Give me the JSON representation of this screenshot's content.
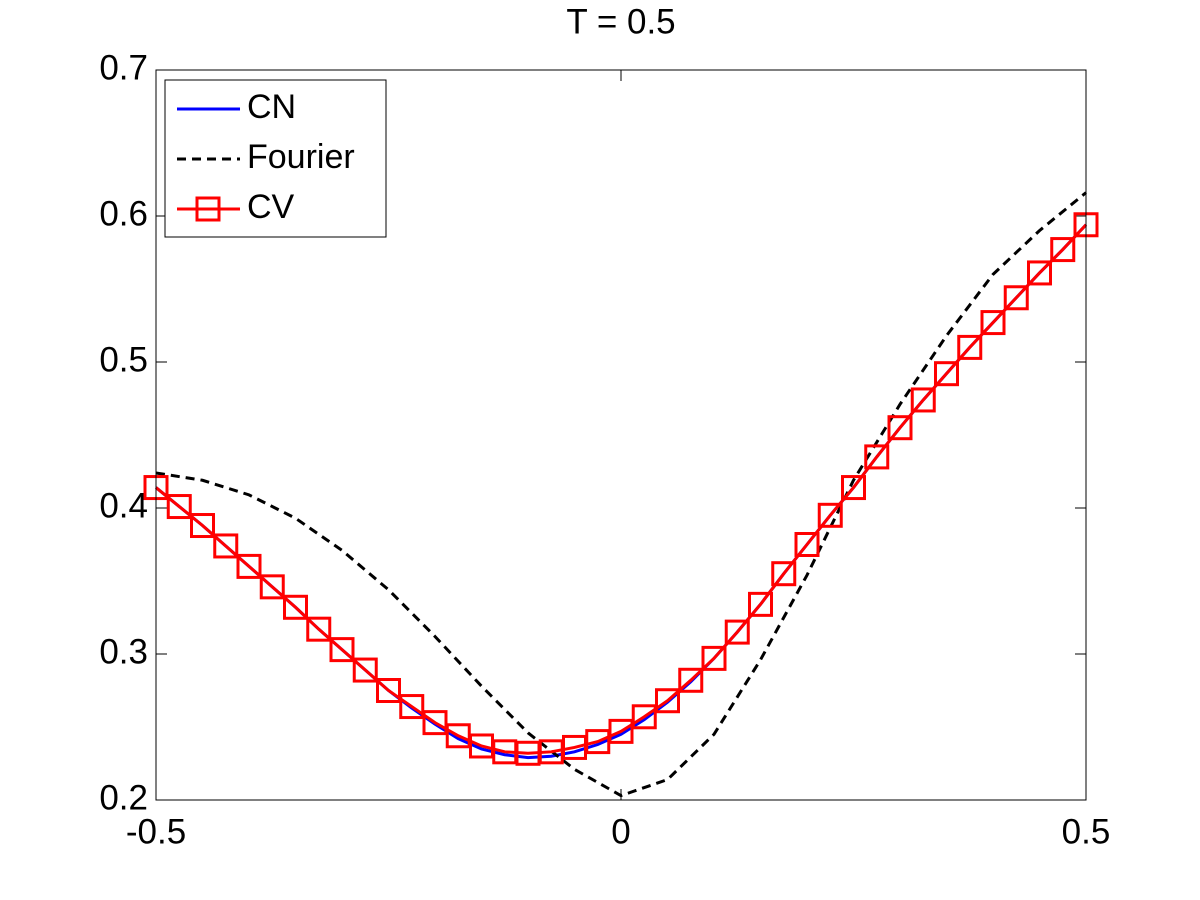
{
  "chart_data": {
    "type": "line",
    "title": "T = 0.5",
    "xlim": [
      -0.5,
      0.5
    ],
    "ylim": [
      0.2,
      0.7
    ],
    "xticks": [
      -0.5,
      0,
      0.5
    ],
    "yticks": [
      0.2,
      0.3,
      0.4,
      0.5,
      0.6,
      0.7
    ],
    "legend": "upper-left",
    "series": [
      {
        "name": "CN",
        "color": "#0000ff",
        "style": "solid",
        "marker": "none",
        "x": [
          -0.5,
          -0.475,
          -0.45,
          -0.425,
          -0.4,
          -0.375,
          -0.35,
          -0.325,
          -0.3,
          -0.275,
          -0.25,
          -0.225,
          -0.2,
          -0.175,
          -0.15,
          -0.125,
          -0.1,
          -0.075,
          -0.05,
          -0.025,
          0,
          0.025,
          0.05,
          0.075,
          0.1,
          0.125,
          0.15,
          0.175,
          0.2,
          0.225,
          0.25,
          0.275,
          0.3,
          0.325,
          0.35,
          0.375,
          0.4,
          0.425,
          0.45,
          0.475,
          0.5
        ],
        "values": [
          0.414,
          0.401,
          0.388,
          0.374,
          0.36,
          0.346,
          0.332,
          0.317,
          0.303,
          0.289,
          0.275,
          0.263,
          0.252,
          0.242,
          0.235,
          0.231,
          0.229,
          0.23,
          0.233,
          0.238,
          0.245,
          0.255,
          0.267,
          0.281,
          0.297,
          0.315,
          0.334,
          0.355,
          0.375,
          0.395,
          0.414,
          0.435,
          0.455,
          0.474,
          0.492,
          0.51,
          0.527,
          0.544,
          0.561,
          0.577,
          0.594
        ]
      },
      {
        "name": "Fourier",
        "color": "#000000",
        "style": "dashed",
        "marker": "none",
        "x": [
          -0.5,
          -0.45,
          -0.4,
          -0.35,
          -0.3,
          -0.25,
          -0.2,
          -0.15,
          -0.1,
          -0.05,
          0,
          0.05,
          0.1,
          0.15,
          0.2,
          0.25,
          0.3,
          0.35,
          0.4,
          0.45,
          0.5
        ],
        "values": [
          0.424,
          0.419,
          0.409,
          0.393,
          0.371,
          0.344,
          0.312,
          0.278,
          0.246,
          0.221,
          0.203,
          0.214,
          0.245,
          0.296,
          0.354,
          0.419,
          0.471,
          0.518,
          0.56,
          0.59,
          0.616
        ]
      },
      {
        "name": "CV",
        "color": "#ff0000",
        "style": "solid",
        "marker": "square",
        "x": [
          -0.5,
          -0.475,
          -0.45,
          -0.425,
          -0.4,
          -0.375,
          -0.35,
          -0.325,
          -0.3,
          -0.275,
          -0.25,
          -0.225,
          -0.2,
          -0.175,
          -0.15,
          -0.125,
          -0.1,
          -0.075,
          -0.05,
          -0.025,
          0,
          0.025,
          0.05,
          0.075,
          0.1,
          0.125,
          0.15,
          0.175,
          0.2,
          0.225,
          0.25,
          0.275,
          0.3,
          0.325,
          0.35,
          0.375,
          0.4,
          0.425,
          0.45,
          0.475,
          0.5
        ],
        "values": [
          0.414,
          0.401,
          0.388,
          0.374,
          0.36,
          0.346,
          0.332,
          0.317,
          0.303,
          0.289,
          0.275,
          0.264,
          0.253,
          0.244,
          0.237,
          0.233,
          0.232,
          0.233,
          0.236,
          0.24,
          0.247,
          0.257,
          0.268,
          0.282,
          0.297,
          0.315,
          0.334,
          0.355,
          0.375,
          0.395,
          0.414,
          0.435,
          0.455,
          0.474,
          0.492,
          0.51,
          0.527,
          0.544,
          0.561,
          0.577,
          0.594
        ]
      }
    ]
  }
}
